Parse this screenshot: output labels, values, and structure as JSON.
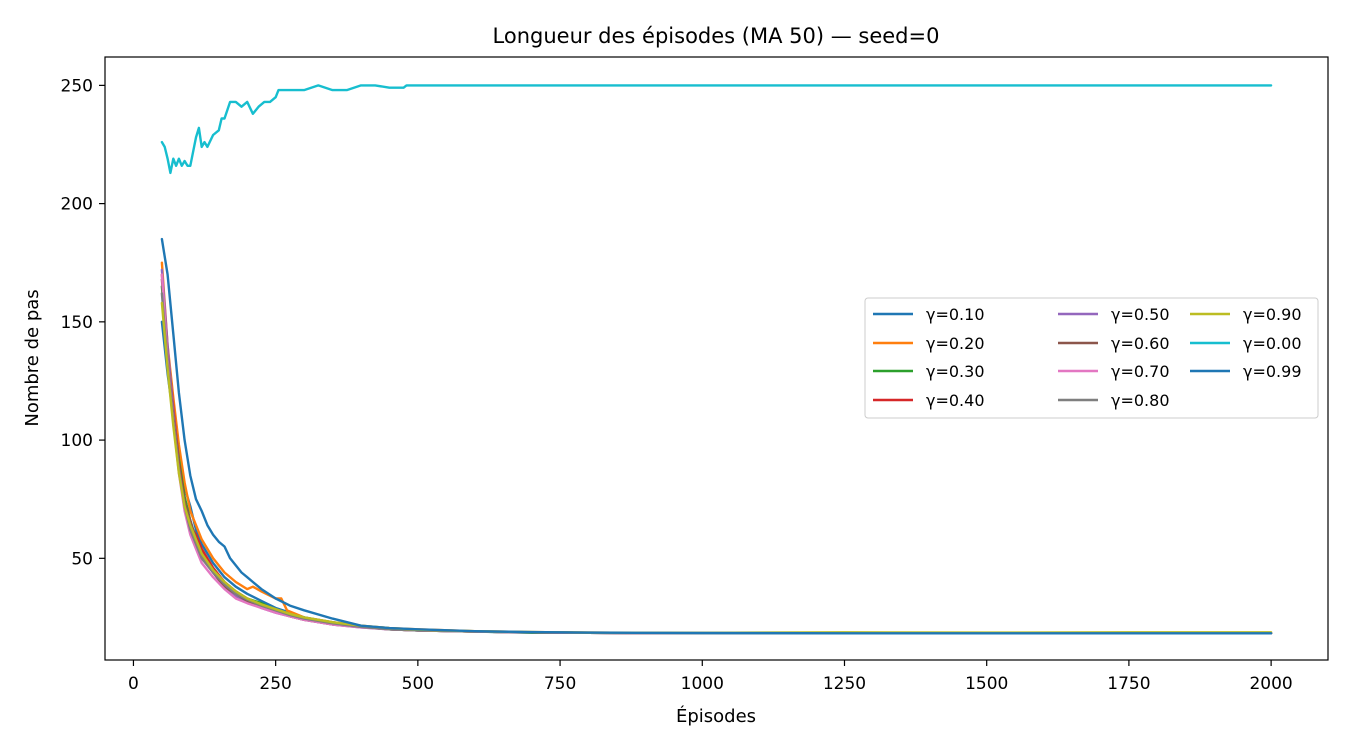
{
  "chart_data": {
    "type": "line",
    "title": "Longueur des épisodes (MA 50) — seed=0",
    "xlabel": "Épisodes",
    "ylabel": "Nombre de pas",
    "xlim": [
      -50,
      2100
    ],
    "ylim": [
      7,
      262
    ],
    "xticks": [
      0,
      250,
      500,
      750,
      1000,
      1250,
      1500,
      1750,
      2000
    ],
    "yticks": [
      50,
      100,
      150,
      200,
      250
    ],
    "grid": false,
    "legend_position": "center-right",
    "legend_columns": 3,
    "series": [
      {
        "name": "γ=0.10",
        "color": "#1f77b4",
        "x": [
          50,
          60,
          70,
          80,
          90,
          100,
          110,
          120,
          140,
          160,
          180,
          200,
          225,
          250,
          275,
          300,
          350,
          400,
          450,
          500,
          600,
          700,
          800,
          1000,
          1250,
          1500,
          1750,
          2000
        ],
        "y": [
          150,
          128,
          110,
          90,
          80,
          72,
          62,
          56,
          48,
          42,
          38,
          35,
          32,
          29,
          27,
          25,
          23,
          21,
          20,
          19.5,
          19,
          18.5,
          18.5,
          18.3,
          18.3,
          18.3,
          18.3,
          18.3
        ]
      },
      {
        "name": "γ=0.20",
        "color": "#ff7f0e",
        "x": [
          50,
          60,
          70,
          80,
          90,
          100,
          110,
          120,
          140,
          160,
          180,
          200,
          210,
          225,
          250,
          260,
          270,
          300,
          350,
          400,
          450,
          500,
          600,
          700,
          800,
          1000,
          1250,
          1500,
          1750,
          2000
        ],
        "y": [
          175,
          140,
          118,
          98,
          82,
          70,
          64,
          58,
          50,
          44,
          40,
          37,
          38,
          36,
          33,
          33,
          28,
          25,
          23,
          21.5,
          20.5,
          20,
          19.2,
          18.8,
          18.6,
          18.4,
          18.3,
          18.3,
          18.3,
          18.3
        ]
      },
      {
        "name": "γ=0.30",
        "color": "#2ca02c",
        "x": [
          50,
          60,
          70,
          80,
          90,
          100,
          110,
          120,
          140,
          160,
          180,
          200,
          225,
          250,
          275,
          300,
          350,
          400,
          450,
          500,
          600,
          700,
          800,
          1000,
          1250,
          1500,
          1750,
          2000
        ],
        "y": [
          165,
          135,
          112,
          92,
          76,
          66,
          58,
          52,
          45,
          40,
          36,
          33,
          31,
          28,
          26,
          25,
          22.5,
          21,
          20,
          19.5,
          19,
          18.6,
          18.5,
          18.3,
          18.3,
          18.3,
          18.3,
          18.3
        ]
      },
      {
        "name": "γ=0.40",
        "color": "#d62728",
        "x": [
          50,
          60,
          70,
          80,
          90,
          100,
          110,
          120,
          140,
          160,
          180,
          200,
          225,
          250,
          275,
          300,
          350,
          400,
          450,
          500,
          600,
          700,
          800,
          1000,
          1250,
          1500,
          1750,
          2000
        ],
        "y": [
          170,
          138,
          114,
          90,
          74,
          64,
          60,
          54,
          46,
          40,
          36,
          33,
          30,
          28,
          26,
          24.5,
          22.5,
          21,
          20,
          19.5,
          19,
          18.7,
          18.5,
          18.3,
          18.3,
          18.3,
          18.3,
          18.3
        ]
      },
      {
        "name": "γ=0.50",
        "color": "#9467bd",
        "x": [
          50,
          60,
          70,
          80,
          90,
          100,
          110,
          120,
          140,
          160,
          180,
          200,
          225,
          250,
          275,
          300,
          350,
          400,
          450,
          500,
          600,
          700,
          800,
          1000,
          1250,
          1500,
          1750,
          2000
        ],
        "y": [
          172,
          140,
          112,
          88,
          72,
          62,
          56,
          50,
          44,
          38,
          34,
          32,
          29,
          27,
          25.5,
          24,
          22,
          20.8,
          20,
          19.5,
          19,
          18.7,
          18.5,
          18.3,
          18.3,
          18.3,
          18.3,
          18.3
        ]
      },
      {
        "name": "γ=0.60",
        "color": "#8c564b",
        "x": [
          50,
          60,
          70,
          80,
          90,
          100,
          110,
          120,
          140,
          160,
          180,
          200,
          225,
          250,
          275,
          300,
          350,
          400,
          450,
          500,
          600,
          700,
          800,
          1000,
          1250,
          1500,
          1750,
          2000
        ],
        "y": [
          168,
          136,
          110,
          88,
          74,
          66,
          58,
          52,
          44,
          38,
          35,
          32,
          29.5,
          27.5,
          25.5,
          24,
          22,
          21,
          20,
          19.5,
          19,
          18.7,
          18.5,
          18.3,
          18.3,
          18.3,
          18.3,
          18.3
        ]
      },
      {
        "name": "γ=0.70",
        "color": "#e377c2",
        "x": [
          50,
          60,
          70,
          80,
          90,
          100,
          110,
          120,
          140,
          160,
          180,
          200,
          225,
          250,
          275,
          300,
          350,
          400,
          450,
          500,
          600,
          700,
          800,
          1000,
          1250,
          1500,
          1750,
          2000
        ],
        "y": [
          170,
          134,
          108,
          86,
          70,
          60,
          54,
          48,
          42,
          37,
          33,
          31,
          29,
          27,
          25.5,
          24,
          22,
          20.8,
          20,
          19.5,
          19,
          18.7,
          18.5,
          18.3,
          18.3,
          18.3,
          18.3,
          18.3
        ]
      },
      {
        "name": "γ=0.80",
        "color": "#7f7f7f",
        "x": [
          50,
          60,
          70,
          80,
          90,
          100,
          110,
          120,
          140,
          160,
          180,
          200,
          225,
          250,
          275,
          300,
          350,
          400,
          450,
          500,
          600,
          700,
          800,
          1000,
          1250,
          1500,
          1750,
          2000
        ],
        "y": [
          162,
          132,
          108,
          88,
          72,
          62,
          56,
          50,
          44,
          39,
          35,
          32.5,
          30,
          28,
          26,
          24.5,
          22.5,
          21,
          20,
          19.5,
          19,
          18.7,
          18.5,
          18.3,
          18.3,
          18.3,
          18.3,
          18.3
        ]
      },
      {
        "name": "γ=0.90",
        "color": "#bcbd22",
        "x": [
          50,
          60,
          70,
          80,
          90,
          100,
          110,
          120,
          140,
          160,
          180,
          200,
          225,
          250,
          275,
          300,
          350,
          400,
          450,
          500,
          600,
          700,
          800,
          1000,
          1250,
          1500,
          1750,
          2000
        ],
        "y": [
          158,
          130,
          106,
          86,
          72,
          64,
          58,
          52,
          45,
          40,
          36,
          33,
          30.5,
          28.5,
          26.5,
          25,
          23,
          21.5,
          20.5,
          19.8,
          19.2,
          18.8,
          18.6,
          18.5,
          18.7,
          18.6,
          18.7,
          18.7
        ]
      },
      {
        "name": "γ=0.00",
        "color": "#17becf",
        "x": [
          50,
          55,
          60,
          65,
          70,
          75,
          80,
          85,
          90,
          95,
          100,
          110,
          115,
          120,
          125,
          130,
          140,
          150,
          155,
          160,
          170,
          180,
          190,
          200,
          210,
          220,
          230,
          240,
          250,
          255,
          260,
          275,
          300,
          325,
          350,
          375,
          400,
          425,
          450,
          475,
          480,
          2000
        ],
        "y": [
          226,
          224,
          219,
          213,
          219,
          216,
          219,
          216,
          218,
          216,
          216,
          228,
          232,
          224,
          226,
          224,
          229,
          231,
          236,
          236,
          243,
          243,
          241,
          243,
          238,
          241,
          243,
          243,
          245,
          248,
          248,
          248,
          248,
          250,
          248,
          248,
          250,
          250,
          249,
          249,
          250,
          250
        ]
      },
      {
        "name": "γ=0.99",
        "color": "#1f77b4",
        "x": [
          50,
          60,
          70,
          80,
          90,
          100,
          110,
          120,
          130,
          140,
          150,
          160,
          170,
          180,
          190,
          200,
          210,
          225,
          250,
          275,
          300,
          350,
          400,
          450,
          500,
          600,
          700,
          800,
          1000,
          1250,
          1500,
          1750,
          2000
        ],
        "y": [
          185,
          170,
          145,
          120,
          100,
          85,
          75,
          70,
          64,
          60,
          57,
          55,
          50,
          47,
          44,
          42,
          40,
          37,
          33,
          30,
          28,
          24.5,
          21.5,
          20.5,
          20,
          19.2,
          18.8,
          18.6,
          18.4,
          18.3,
          18.3,
          18.3,
          18.3
        ]
      }
    ]
  }
}
